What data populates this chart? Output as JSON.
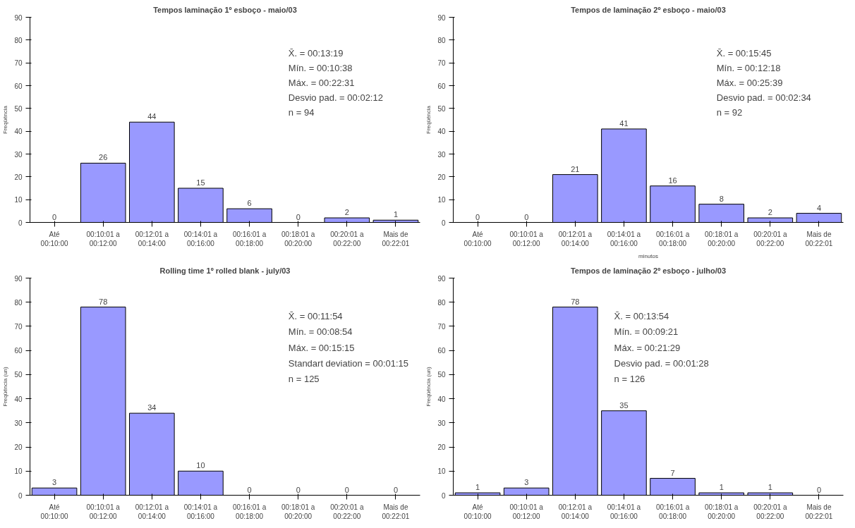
{
  "chart_data": [
    {
      "type": "bar",
      "title": "Tempos laminação 1º esboço - maio/03",
      "ylabel": "Freqüência",
      "categories": [
        "Até\n00:10:00",
        "00:10:01 a\n00:12:00",
        "00:12:01 a\n00:14:00",
        "00:14:01 a\n00:16:00",
        "00:16:01 a\n00:18:00",
        "00:18:01 a\n00:20:00",
        "00:20:01 a\n00:22:00",
        "Mais de\n00:22:01"
      ],
      "values": [
        0,
        26,
        44,
        15,
        6,
        0,
        2,
        1
      ],
      "color": "#9999ff",
      "ylim": [
        0,
        90
      ],
      "yticks": [
        0,
        10,
        20,
        30,
        40,
        50,
        60,
        70,
        80,
        90
      ],
      "data_labels": true,
      "annotations": [
        "X̄. = 00:13:19",
        "Mín. = 00:10:38",
        "Máx. = 00:22:31",
        "Desvio pad. = 00:02:12",
        "n = 94"
      ]
    },
    {
      "type": "bar",
      "title": "Tempos de laminação 2º esboço - maio/03",
      "ylabel": "Freqüência",
      "xlabel": "minutos",
      "categories": [
        "Até\n00:10:00",
        "00:10:01 a\n00:12:00",
        "00:12:01 a\n00:14:00",
        "00:14:01 a\n00:16:00",
        "00:16:01 a\n00:18:00",
        "00:18:01 a\n00:20:00",
        "00:20:01 a\n00:22:00",
        "Mais de\n00:22:01"
      ],
      "values": [
        0,
        0,
        21,
        41,
        16,
        8,
        2,
        4
      ],
      "color": "#9999ff",
      "ylim": [
        0,
        90
      ],
      "yticks": [
        0,
        10,
        20,
        30,
        40,
        50,
        60,
        70,
        80,
        90
      ],
      "data_labels": true,
      "annotations": [
        "X̄. = 00:15:45",
        "Mín. = 00:12:18",
        "Máx. = 00:25:39",
        "Desvio pad. = 00:02:34",
        "n = 92"
      ]
    },
    {
      "type": "bar",
      "title": "Rolling time 1º rolled blank - july/03",
      "ylabel": "Freqüência (un)",
      "categories": [
        "Até\n00:10:00",
        "00:10:01 a\n00:12:00",
        "00:12:01 a\n00:14:00",
        "00:14:01 a\n00:16:00",
        "00:16:01 a\n00:18:00",
        "00:18:01 a\n00:20:00",
        "00:20:01 a\n00:22:00",
        "Mais de\n00:22:01"
      ],
      "values": [
        3,
        78,
        34,
        10,
        0,
        0,
        0,
        0
      ],
      "color": "#9999ff",
      "ylim": [
        0,
        90
      ],
      "yticks": [
        0,
        10,
        20,
        30,
        40,
        50,
        60,
        70,
        80,
        90
      ],
      "data_labels": true,
      "annotations": [
        "X̄. = 00:11:54",
        "Mín. = 00:08:54",
        "Máx. = 00:15:15",
        "Standart deviation = 00:01:15",
        "n = 125"
      ]
    },
    {
      "type": "bar",
      "title": "Tempos de laminação 2º esboço - julho/03",
      "ylabel": "Freqüência (un)",
      "categories": [
        "Até\n00:10:00",
        "00:10:01 a\n00:12:00",
        "00:12:01 a\n00:14:00",
        "00:14:01 a\n00:16:00",
        "00:16:01 a\n00:18:00",
        "00:18:01 a\n00:20:00",
        "00:20:01 a\n00:22:00",
        "Mais de\n00:22:01"
      ],
      "values": [
        1,
        3,
        78,
        35,
        7,
        1,
        1,
        0
      ],
      "color": "#9999ff",
      "ylim": [
        0,
        90
      ],
      "yticks": [
        0,
        10,
        20,
        30,
        40,
        50,
        60,
        70,
        80,
        90
      ],
      "data_labels": true,
      "annotations": [
        "X̄. = 00:13:54",
        "Mín. = 00:09:21",
        "Máx. = 00:21:29",
        "Desvio pad. = 00:01:28",
        "n = 126"
      ]
    }
  ]
}
